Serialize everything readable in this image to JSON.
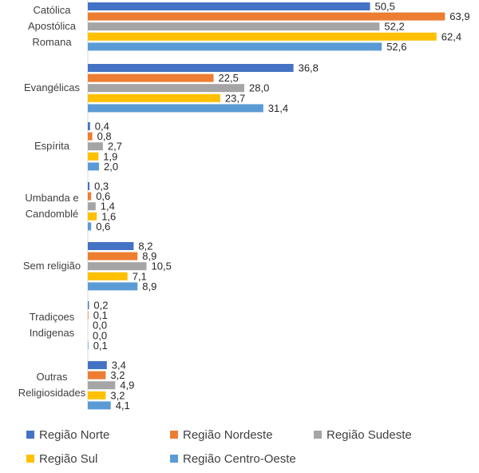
{
  "chart_data": {
    "type": "bar",
    "orientation": "horizontal",
    "categories": [
      [
        "Católica",
        "Apostólica",
        "Romana"
      ],
      [
        "Evangélicas"
      ],
      [
        "Espírita"
      ],
      [
        "Umbanda e",
        "Candomblé"
      ],
      [
        "Sem religião"
      ],
      [
        "Tradiçoes",
        "Indigenas"
      ],
      [
        "Outras",
        "Religiosidades"
      ]
    ],
    "series": [
      {
        "name": "Região Norte",
        "color": "#4472C4",
        "values": [
          50.5,
          36.8,
          0.4,
          0.3,
          8.2,
          0.2,
          3.4
        ],
        "labels": [
          "50,5",
          "36,8",
          "0,4",
          "0,3",
          "8,2",
          "0,2",
          "3,4"
        ]
      },
      {
        "name": "Região Nordeste",
        "color": "#ED7D31",
        "values": [
          63.9,
          22.5,
          0.8,
          0.6,
          8.9,
          0.1,
          3.2
        ],
        "labels": [
          "63,9",
          "22,5",
          "0,8",
          "0,6",
          "8,9",
          "0,1",
          "3,2"
        ]
      },
      {
        "name": "Região Sudeste",
        "color": "#A5A5A5",
        "values": [
          52.2,
          28.0,
          2.7,
          1.4,
          10.5,
          0.0,
          4.9
        ],
        "labels": [
          "52,2",
          "28,0",
          "2,7",
          "1,4",
          "10,5",
          "0,0",
          "4,9"
        ]
      },
      {
        "name": "Região Sul",
        "color": "#FFC000",
        "values": [
          62.4,
          23.7,
          1.9,
          1.6,
          7.1,
          0.0,
          3.2
        ],
        "labels": [
          "62,4",
          "23,7",
          "1,9",
          "1,6",
          "7,1",
          "0,0",
          "3,2"
        ]
      },
      {
        "name": "Região Centro-Oeste",
        "color": "#5B9BD5",
        "values": [
          52.6,
          31.4,
          2.0,
          0.6,
          8.9,
          0.1,
          4.1
        ],
        "labels": [
          "52,6",
          "31,4",
          "2,0",
          "0,6",
          "8,9",
          "0,1",
          "4,1"
        ]
      }
    ],
    "xlim": [
      0,
      70
    ],
    "grid": false,
    "legend_position": "bottom",
    "title": "",
    "xlabel": "",
    "ylabel": ""
  }
}
